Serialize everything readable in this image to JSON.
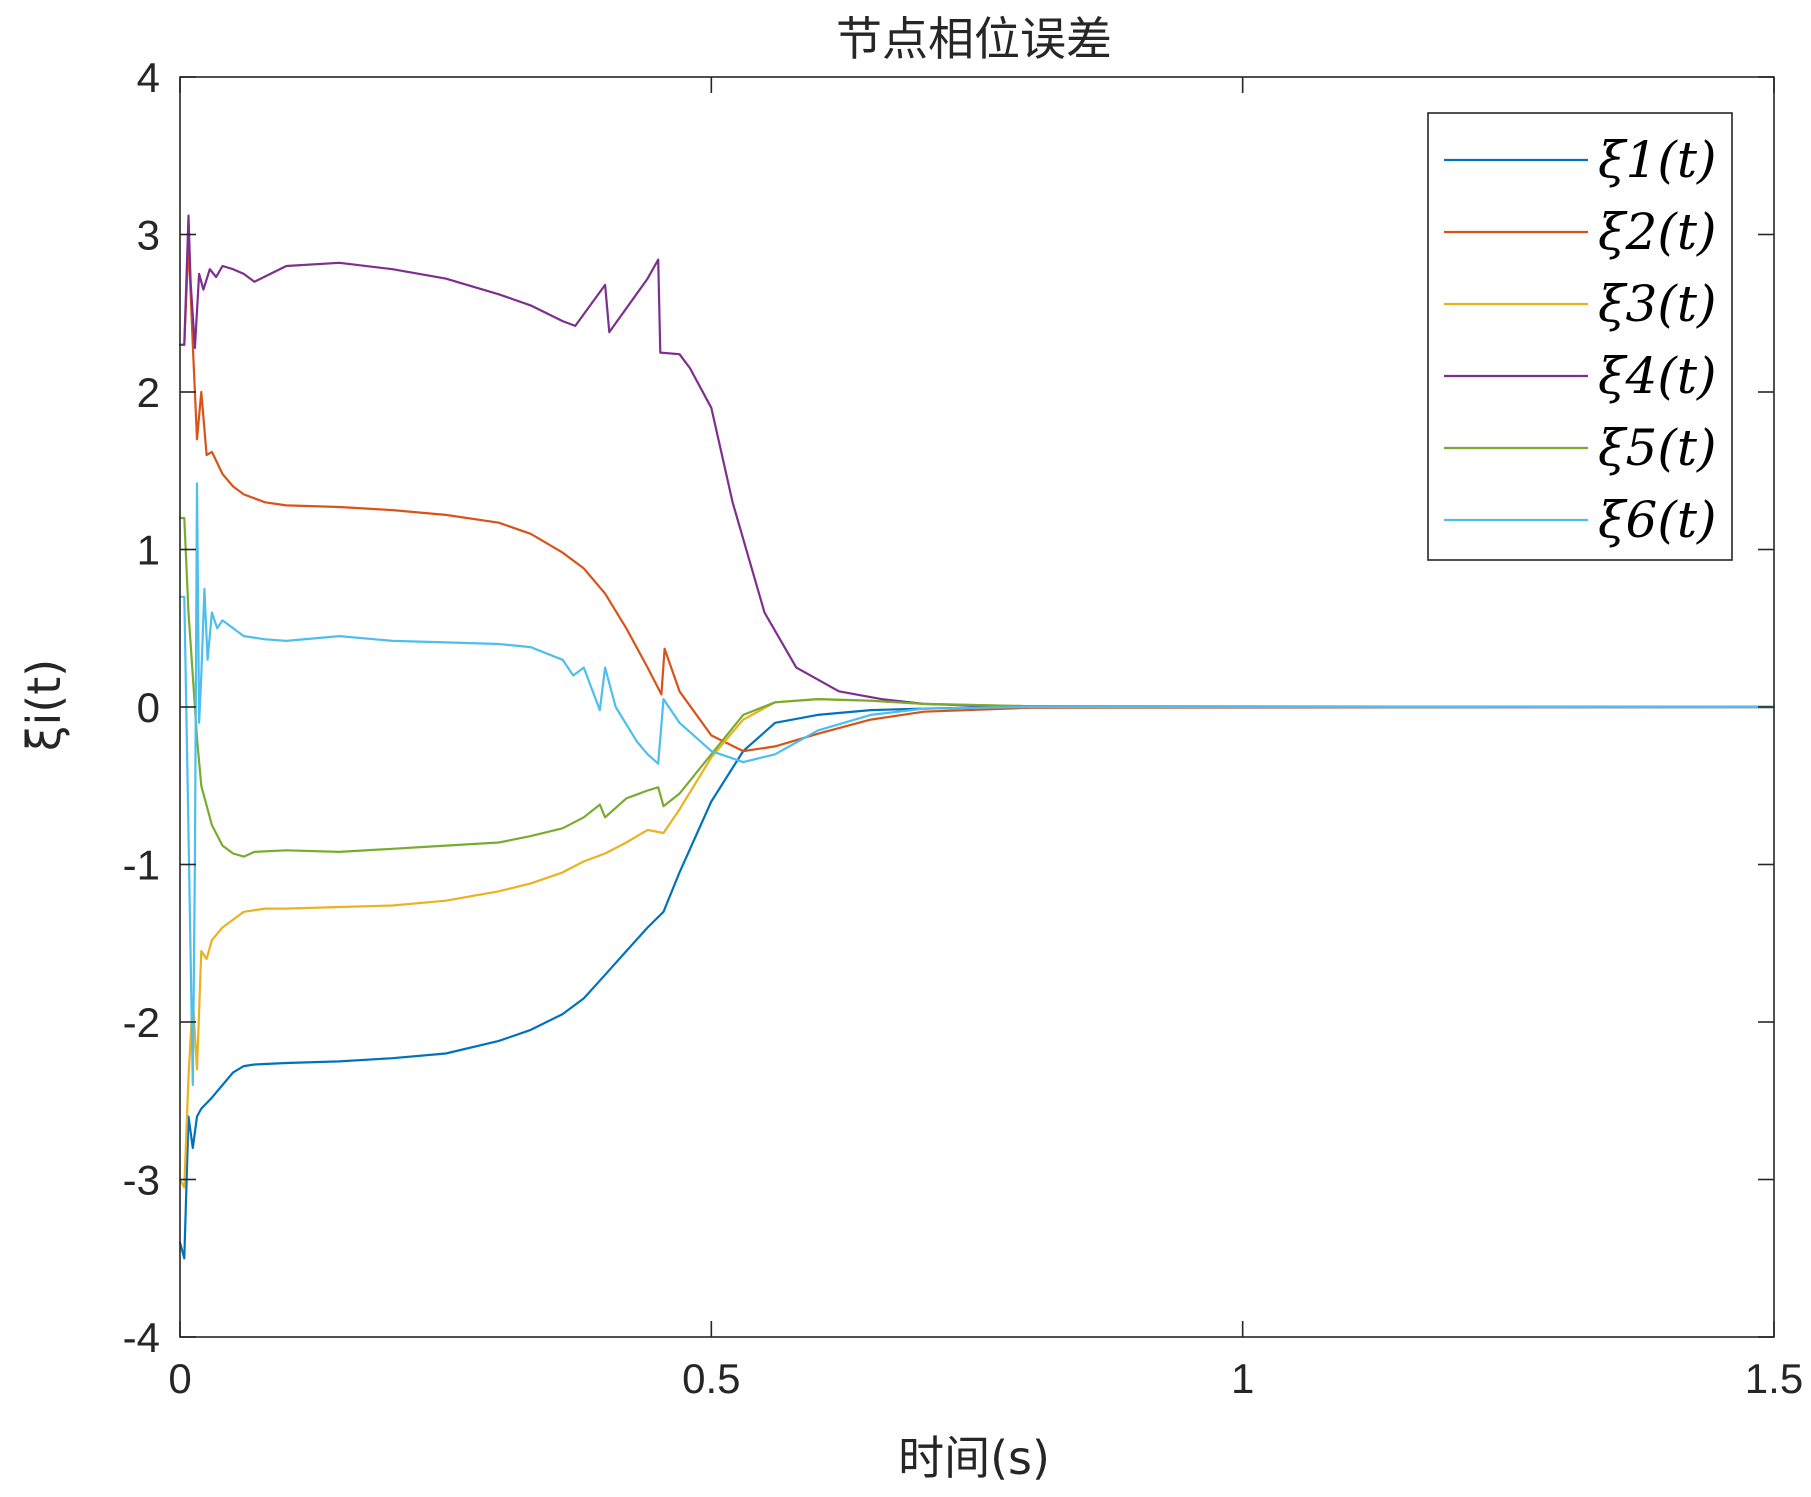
{
  "chart_data": {
    "type": "line",
    "title": "节点相位误差",
    "xlabel": "时间(s)",
    "ylabel": "ξi(t)",
    "xlim": [
      0,
      1.5
    ],
    "ylim": [
      -4,
      4
    ],
    "xticks": [
      0,
      0.5,
      1,
      1.5
    ],
    "xtick_labels": [
      "0",
      "0.5",
      "1",
      "1.5"
    ],
    "yticks": [
      -4,
      -3,
      -2,
      -1,
      0,
      1,
      2,
      3,
      4
    ],
    "ytick_labels": [
      "-4",
      "-3",
      "-2",
      "-1",
      "0",
      "1",
      "2",
      "3",
      "4"
    ],
    "grid": false,
    "legend_position": "top-right",
    "series": [
      {
        "name": "ξ1(t)",
        "color": "#0072BD",
        "x": [
          0,
          0.004,
          0.008,
          0.012,
          0.016,
          0.02,
          0.03,
          0.04,
          0.05,
          0.06,
          0.07,
          0.1,
          0.15,
          0.2,
          0.25,
          0.3,
          0.33,
          0.36,
          0.38,
          0.4,
          0.42,
          0.44,
          0.455,
          0.47,
          0.5,
          0.53,
          0.56,
          0.6,
          0.65,
          0.7,
          0.75,
          0.8,
          1.0,
          1.5
        ],
        "y": [
          -3.4,
          -3.5,
          -2.6,
          -2.8,
          -2.6,
          -2.55,
          -2.48,
          -2.4,
          -2.32,
          -2.28,
          -2.27,
          -2.26,
          -2.25,
          -2.23,
          -2.2,
          -2.12,
          -2.05,
          -1.95,
          -1.85,
          -1.7,
          -1.55,
          -1.4,
          -1.3,
          -1.05,
          -0.6,
          -0.28,
          -0.1,
          -0.05,
          -0.02,
          -0.01,
          -0.004,
          0,
          0,
          0
        ]
      },
      {
        "name": "ξ2(t)",
        "color": "#D95319",
        "x": [
          0,
          0.004,
          0.008,
          0.012,
          0.016,
          0.02,
          0.025,
          0.03,
          0.04,
          0.05,
          0.06,
          0.08,
          0.1,
          0.15,
          0.2,
          0.25,
          0.3,
          0.33,
          0.36,
          0.38,
          0.4,
          0.42,
          0.44,
          0.453,
          0.456,
          0.47,
          0.5,
          0.53,
          0.56,
          0.6,
          0.65,
          0.7,
          0.8,
          1.5
        ],
        "y": [
          2.3,
          2.3,
          2.95,
          2.3,
          1.7,
          2.0,
          1.6,
          1.62,
          1.48,
          1.4,
          1.35,
          1.3,
          1.28,
          1.27,
          1.25,
          1.22,
          1.17,
          1.1,
          0.98,
          0.88,
          0.72,
          0.5,
          0.25,
          0.08,
          0.37,
          0.1,
          -0.18,
          -0.28,
          -0.25,
          -0.17,
          -0.08,
          -0.03,
          -0.005,
          0
        ]
      },
      {
        "name": "ξ3(t)",
        "color": "#EDB120",
        "x": [
          0,
          0.004,
          0.008,
          0.012,
          0.016,
          0.02,
          0.025,
          0.03,
          0.04,
          0.05,
          0.06,
          0.08,
          0.1,
          0.15,
          0.2,
          0.25,
          0.3,
          0.33,
          0.36,
          0.38,
          0.4,
          0.42,
          0.44,
          0.455,
          0.47,
          0.5,
          0.53,
          0.56,
          0.6,
          0.65,
          0.7,
          0.8,
          1.5
        ],
        "y": [
          -3.0,
          -3.05,
          -2.35,
          -1.85,
          -2.3,
          -1.55,
          -1.6,
          -1.48,
          -1.4,
          -1.35,
          -1.3,
          -1.28,
          -1.28,
          -1.27,
          -1.26,
          -1.23,
          -1.17,
          -1.12,
          -1.05,
          -0.98,
          -0.93,
          -0.86,
          -0.78,
          -0.8,
          -0.65,
          -0.32,
          -0.08,
          0.03,
          0.05,
          0.04,
          0.02,
          0.005,
          0
        ]
      },
      {
        "name": "ξ4(t)",
        "color": "#7E2F8E",
        "x": [
          0,
          0.004,
          0.008,
          0.01,
          0.014,
          0.018,
          0.022,
          0.028,
          0.034,
          0.04,
          0.05,
          0.06,
          0.07,
          0.1,
          0.15,
          0.2,
          0.25,
          0.3,
          0.33,
          0.36,
          0.372,
          0.4,
          0.404,
          0.44,
          0.45,
          0.452,
          0.47,
          0.48,
          0.5,
          0.52,
          0.55,
          0.58,
          0.62,
          0.66,
          0.7,
          0.75,
          0.8,
          1.0,
          1.5
        ],
        "y": [
          2.3,
          2.3,
          3.12,
          2.7,
          2.28,
          2.75,
          2.65,
          2.78,
          2.73,
          2.8,
          2.78,
          2.75,
          2.7,
          2.8,
          2.82,
          2.78,
          2.72,
          2.62,
          2.55,
          2.45,
          2.42,
          2.68,
          2.38,
          2.72,
          2.84,
          2.25,
          2.24,
          2.15,
          1.9,
          1.3,
          0.6,
          0.25,
          0.1,
          0.05,
          0.02,
          0.008,
          0.003,
          0,
          0
        ]
      },
      {
        "name": "ξ5(t)",
        "color": "#77AC30",
        "x": [
          0,
          0.004,
          0.008,
          0.012,
          0.016,
          0.02,
          0.03,
          0.04,
          0.05,
          0.06,
          0.07,
          0.1,
          0.15,
          0.2,
          0.25,
          0.3,
          0.33,
          0.36,
          0.38,
          0.395,
          0.4,
          0.42,
          0.44,
          0.45,
          0.455,
          0.47,
          0.5,
          0.53,
          0.56,
          0.6,
          0.65,
          0.7,
          0.8,
          1.5
        ],
        "y": [
          1.2,
          1.2,
          0.6,
          0.2,
          -0.2,
          -0.5,
          -0.75,
          -0.88,
          -0.93,
          -0.95,
          -0.92,
          -0.91,
          -0.92,
          -0.9,
          -0.88,
          -0.86,
          -0.82,
          -0.77,
          -0.7,
          -0.62,
          -0.7,
          -0.58,
          -0.53,
          -0.51,
          -0.63,
          -0.55,
          -0.3,
          -0.05,
          0.03,
          0.05,
          0.04,
          0.02,
          0.005,
          0
        ]
      },
      {
        "name": "ξ6(t)",
        "color": "#4DBEEE",
        "x": [
          0,
          0.004,
          0.008,
          0.012,
          0.014,
          0.016,
          0.018,
          0.02,
          0.023,
          0.026,
          0.03,
          0.035,
          0.04,
          0.06,
          0.08,
          0.1,
          0.15,
          0.2,
          0.25,
          0.3,
          0.33,
          0.36,
          0.37,
          0.38,
          0.395,
          0.4,
          0.41,
          0.43,
          0.44,
          0.45,
          0.455,
          0.47,
          0.5,
          0.53,
          0.56,
          0.6,
          0.65,
          0.7,
          0.8,
          1.5
        ],
        "y": [
          0.7,
          0.7,
          -0.8,
          -2.4,
          -1.0,
          1.42,
          -0.1,
          0.2,
          0.75,
          0.3,
          0.6,
          0.5,
          0.55,
          0.45,
          0.43,
          0.42,
          0.45,
          0.42,
          0.41,
          0.4,
          0.38,
          0.3,
          0.2,
          0.25,
          -0.02,
          0.25,
          0.0,
          -0.22,
          -0.3,
          -0.36,
          0.05,
          -0.1,
          -0.28,
          -0.35,
          -0.3,
          -0.15,
          -0.05,
          -0.01,
          0,
          0
        ]
      }
    ]
  }
}
